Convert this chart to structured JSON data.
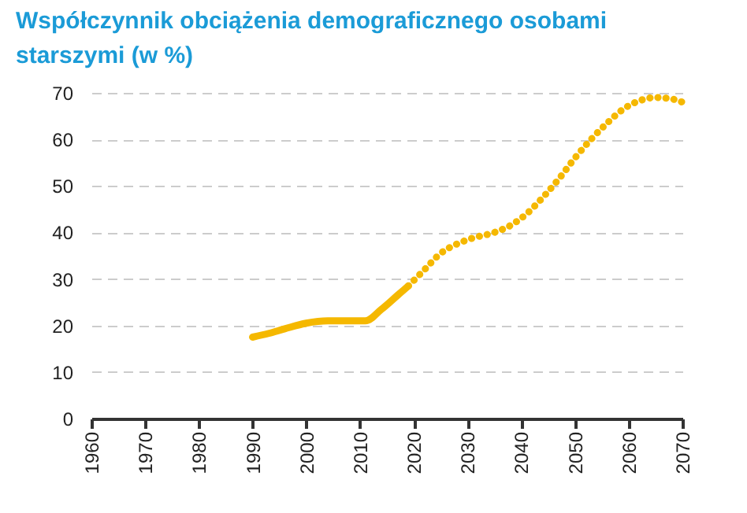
{
  "chart_data": {
    "type": "line",
    "title": "Współczynnik obciążenia demograficznego osobami starszymi (w %)",
    "series": [
      {
        "color": "#f5b800",
        "line_style": "solid",
        "x": [
          1990,
          1993,
          1996,
          2000,
          2004,
          2008,
          2011,
          2014,
          2017,
          2019
        ],
        "values": [
          17.5,
          18.3,
          19.3,
          20.5,
          21,
          21,
          21,
          23.5,
          26.5,
          28.5
        ]
      },
      {
        "color": "#f5b800",
        "line_style": "dotted",
        "x": [
          2019,
          2022,
          2025,
          2028,
          2031,
          2035,
          2038,
          2041,
          2044,
          2047,
          2050,
          2053,
          2056,
          2059,
          2062,
          2065,
          2068,
          2070
        ],
        "values": [
          28.5,
          32,
          35.5,
          37.5,
          38.8,
          40,
          41.5,
          44,
          47.5,
          51.5,
          56,
          60,
          63.5,
          66.5,
          68.3,
          69,
          68.7,
          68
        ]
      }
    ],
    "xlim": [
      1960,
      2070
    ],
    "xticks": [
      1960,
      1970,
      1980,
      1990,
      2000,
      2010,
      2020,
      2030,
      2040,
      2050,
      2060,
      2070
    ],
    "ylim": [
      0,
      70
    ],
    "yticks": [
      0,
      10,
      20,
      30,
      40,
      50,
      60,
      70
    ],
    "grid": "y",
    "marker": "none"
  }
}
